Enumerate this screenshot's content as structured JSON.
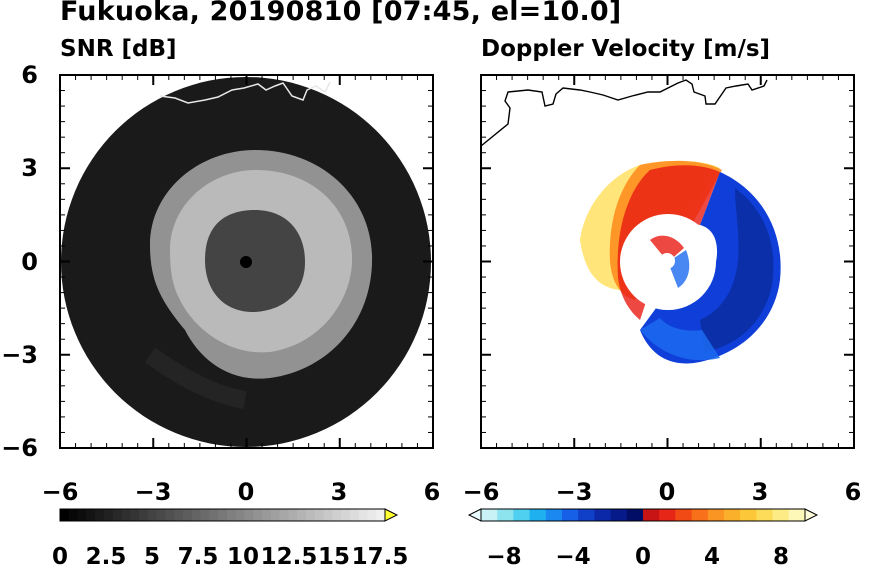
{
  "figure": {
    "title": "Fukuoka, 20190810 [07:45, el=10.0]"
  },
  "chart_data": [
    {
      "type": "heatmap",
      "title": "SNR [dB]",
      "projection": "polar radar PPI",
      "xlim": [
        -6,
        6
      ],
      "ylim": [
        -6,
        6
      ],
      "xticks": [
        "−6",
        "−3",
        "0",
        "3",
        "6"
      ],
      "yticks": [
        "6",
        "3",
        "0",
        "−3",
        "−6"
      ],
      "colormap": "grayscale",
      "colorbar": {
        "ticks": [
          "0",
          "2.5",
          "5",
          "7.5",
          "10",
          "12.5",
          "15",
          "17.5"
        ],
        "range": [
          0,
          18.5
        ],
        "extend": "max",
        "extend_color": "#ffff33"
      },
      "features": [
        "coastline",
        "range ring echo"
      ]
    },
    {
      "type": "heatmap",
      "title": "Doppler Velocity [m/s]",
      "projection": "polar radar PPI",
      "xlim": [
        -6,
        6
      ],
      "ylim": [
        -6,
        6
      ],
      "xticks": [
        "−6",
        "−3",
        "0",
        "3",
        "6"
      ],
      "yticks": [],
      "colormap": "diverging cyan-blue / red-yellow",
      "colorbar": {
        "ticks": [
          "−8",
          "−4",
          "0",
          "4",
          "8"
        ],
        "range": [
          -10,
          10
        ],
        "extend": "both",
        "extend_color": "#e9fbfd"
      },
      "features": [
        "coastline"
      ]
    }
  ]
}
